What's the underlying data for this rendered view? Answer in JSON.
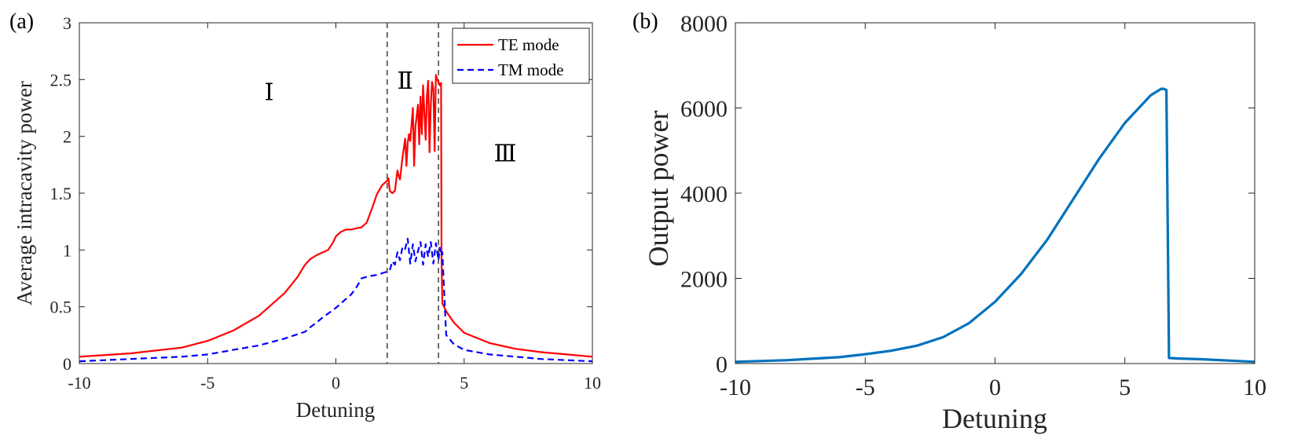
{
  "chart_data": [
    {
      "type": "line",
      "panel_label": "(a)",
      "xlabel": "Detuning",
      "ylabel": "Average intracavity power",
      "xlim": [
        -10,
        10
      ],
      "ylim": [
        0,
        3
      ],
      "xticks": [
        -10,
        -5,
        0,
        5,
        10
      ],
      "yticks": [
        0,
        0.5,
        1,
        1.5,
        2,
        2.5,
        3
      ],
      "xtick_labels": [
        "-10",
        "-5",
        "0",
        "5",
        "10"
      ],
      "ytick_labels": [
        "0",
        "0.5",
        "1",
        "1.5",
        "2",
        "2.5",
        "3"
      ],
      "grid": false,
      "legend_position": "top-right",
      "vlines": [
        2,
        4
      ],
      "regions": [
        {
          "label": "Ⅰ",
          "x": -2.6,
          "y": 2.32
        },
        {
          "label": "Ⅱ",
          "x": 2.7,
          "y": 2.42
        },
        {
          "label": "Ⅲ",
          "x": 6.6,
          "y": 1.78
        }
      ],
      "series": [
        {
          "name": "TE mode",
          "color": "#ff0000",
          "dash": "solid",
          "x": [
            -10,
            -8,
            -6,
            -5,
            -4,
            -3,
            -2,
            -1.5,
            -1.2,
            -1,
            -0.7,
            -0.5,
            -0.3,
            -0.1,
            0,
            0.2,
            0.4,
            0.6,
            0.8,
            1.0,
            1.2,
            1.4,
            1.6,
            1.8,
            2.0,
            2.05,
            2.1,
            2.2,
            2.3,
            2.4,
            2.45,
            2.5,
            2.6,
            2.7,
            2.75,
            2.8,
            2.85,
            2.9,
            3.0,
            3.05,
            3.1,
            3.2,
            3.25,
            3.3,
            3.35,
            3.4,
            3.5,
            3.55,
            3.6,
            3.65,
            3.7,
            3.75,
            3.8,
            3.85,
            3.9,
            3.95,
            4.0,
            4.05,
            4.1,
            4.12,
            4.15,
            4.3,
            4.6,
            5,
            6,
            7,
            8,
            9,
            10
          ],
          "y": [
            0.06,
            0.09,
            0.14,
            0.2,
            0.29,
            0.42,
            0.62,
            0.76,
            0.87,
            0.92,
            0.96,
            0.98,
            1.0,
            1.07,
            1.12,
            1.16,
            1.18,
            1.18,
            1.19,
            1.2,
            1.24,
            1.36,
            1.49,
            1.57,
            1.61,
            1.63,
            1.52,
            1.5,
            1.52,
            1.7,
            1.65,
            1.62,
            1.82,
            1.98,
            1.74,
            1.94,
            2.02,
            1.96,
            2.25,
            1.74,
            2.08,
            2.28,
            1.93,
            2.35,
            2.02,
            2.45,
            1.97,
            2.36,
            2.49,
            1.86,
            2.28,
            2.48,
            2.42,
            1.87,
            2.54,
            2.5,
            2.48,
            2.45,
            2.47,
            0.9,
            0.53,
            0.46,
            0.36,
            0.27,
            0.18,
            0.13,
            0.1,
            0.08,
            0.06
          ]
        },
        {
          "name": "TM mode",
          "color": "#0000ff",
          "dash": "dashed",
          "x": [
            -10,
            -8,
            -6,
            -5,
            -4,
            -3,
            -2,
            -1.2,
            -1,
            -0.7,
            -0.5,
            -0.3,
            0,
            0.3,
            0.6,
            0.8,
            1.0,
            1.3,
            1.6,
            2.0,
            2.1,
            2.2,
            2.3,
            2.4,
            2.5,
            2.6,
            2.7,
            2.8,
            2.9,
            3.0,
            3.1,
            3.2,
            3.3,
            3.4,
            3.5,
            3.6,
            3.7,
            3.8,
            3.9,
            4.0,
            4.05,
            4.1,
            4.15,
            4.3,
            4.6,
            5,
            6,
            7,
            8,
            9,
            10
          ],
          "y": [
            0.02,
            0.04,
            0.06,
            0.08,
            0.12,
            0.16,
            0.22,
            0.28,
            0.32,
            0.37,
            0.41,
            0.44,
            0.49,
            0.55,
            0.61,
            0.67,
            0.75,
            0.77,
            0.78,
            0.81,
            0.82,
            0.9,
            0.87,
            0.98,
            0.91,
            1.03,
            1.01,
            1.1,
            0.88,
            1.05,
            0.9,
            0.99,
            1.07,
            0.87,
            1.05,
            0.94,
            1.07,
            0.88,
            1.06,
            0.91,
            1.02,
            0.95,
            0.98,
            0.25,
            0.17,
            0.12,
            0.08,
            0.06,
            0.04,
            0.03,
            0.02
          ]
        }
      ]
    },
    {
      "type": "line",
      "panel_label": "(b)",
      "xlabel": "Detuning",
      "ylabel": "Output power",
      "xlim": [
        -10,
        10
      ],
      "ylim": [
        0,
        8000
      ],
      "xticks": [
        -10,
        -5,
        0,
        5,
        10
      ],
      "yticks": [
        0,
        2000,
        4000,
        6000,
        8000
      ],
      "xtick_labels": [
        "-10",
        "-5",
        "0",
        "5",
        "10"
      ],
      "ytick_labels": [
        "0",
        "2000",
        "4000",
        "6000",
        "8000"
      ],
      "grid": false,
      "series": [
        {
          "name": "Output power",
          "color": "#0072bd",
          "dash": "solid",
          "x": [
            -10,
            -8,
            -6,
            -5,
            -4,
            -3,
            -2,
            -1,
            0,
            1,
            2,
            3,
            4,
            5,
            6,
            6.4,
            6.5,
            6.6,
            6.7,
            7,
            8,
            9,
            10
          ],
          "y": [
            40,
            80,
            150,
            220,
            300,
            420,
            620,
            950,
            1450,
            2100,
            2900,
            3850,
            4800,
            5650,
            6300,
            6450,
            6450,
            6420,
            130,
            120,
            100,
            70,
            40
          ]
        }
      ]
    }
  ]
}
